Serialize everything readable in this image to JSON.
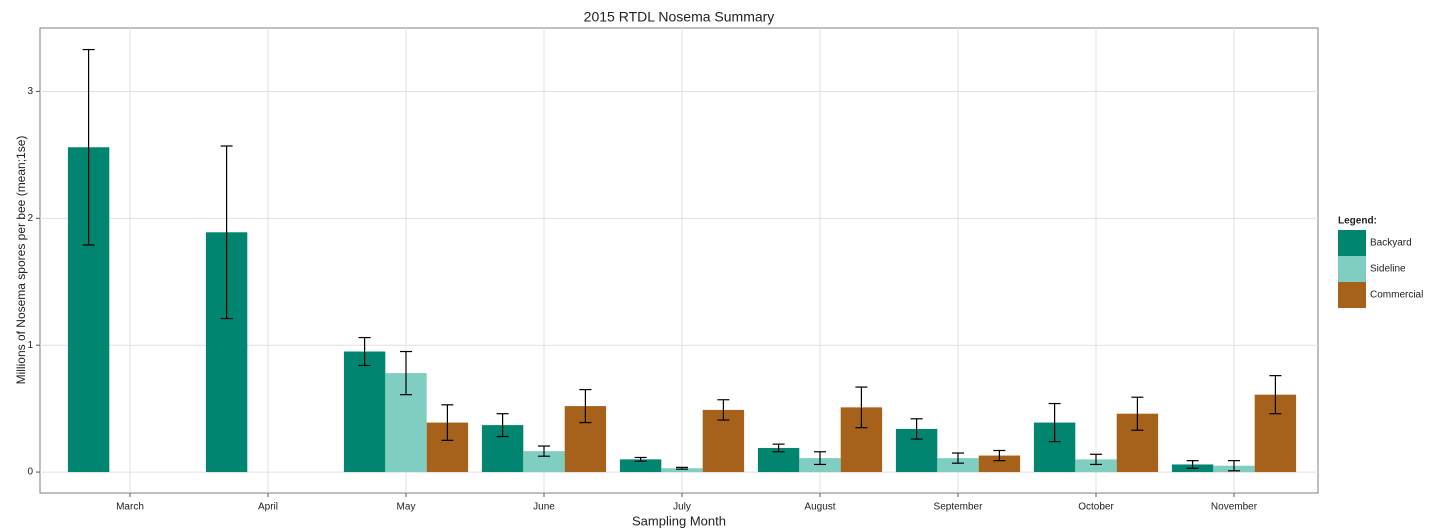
{
  "chart_data": {
    "type": "bar",
    "title": "2015 RTDL Nosema Summary",
    "x_label": "Sampling Month",
    "y_label": "Millions of Nosema spores per bee (mean;1se)",
    "legend_title": "Legend:",
    "legend_position": "right",
    "grid": true,
    "categories": [
      "March",
      "April",
      "May",
      "June",
      "July",
      "August",
      "September",
      "October",
      "November"
    ],
    "series": [
      {
        "name": "Backyard",
        "color": "#018571",
        "values": [
          2.56,
          1.89,
          0.95,
          0.37,
          0.1,
          0.19,
          0.34,
          0.39,
          0.06
        ],
        "errors": [
          0.77,
          0.68,
          0.11,
          0.09,
          0.015,
          0.03,
          0.08,
          0.15,
          0.03
        ]
      },
      {
        "name": "Sideline",
        "color": "#80cdc1",
        "values": [
          null,
          null,
          0.78,
          0.165,
          0.03,
          0.11,
          0.11,
          0.1,
          0.05
        ],
        "errors": [
          null,
          null,
          0.17,
          0.04,
          0.007,
          0.05,
          0.04,
          0.04,
          0.04
        ]
      },
      {
        "name": "Commercial",
        "color": "#a6611a",
        "values": [
          null,
          null,
          0.39,
          0.52,
          0.49,
          0.51,
          0.13,
          0.46,
          0.61
        ],
        "errors": [
          null,
          null,
          0.14,
          0.13,
          0.08,
          0.16,
          0.04,
          0.13,
          0.15
        ]
      }
    ],
    "ylim": [
      -0.165,
      3.5
    ],
    "yticks": [
      0,
      1,
      2,
      3
    ]
  }
}
